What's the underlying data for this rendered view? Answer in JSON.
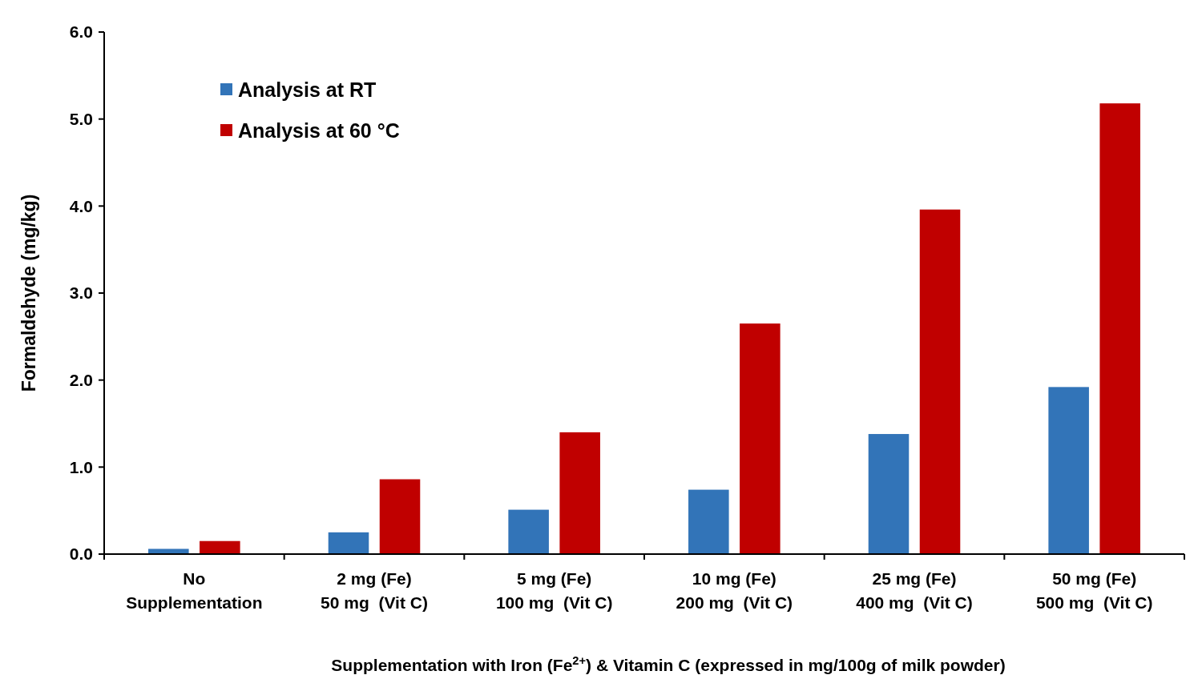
{
  "chart_data": {
    "type": "bar",
    "xlabel": "Supplementation with Iron (Fe$^{2+}$) & Vitamin C (expressed in mg/100g of milk powder)",
    "ylabel": "Formaldehyde (mg/kg)",
    "categories": [
      "No\nSupplementation",
      "2 mg (Fe)\n50 mg  (Vit C)",
      "5 mg (Fe)\n100 mg  (Vit C)",
      "10 mg (Fe)\n200 mg  (Vit C)",
      "25 mg (Fe)\n400 mg  (Vit C)",
      "50 mg (Fe)\n500 mg  (Vit C)"
    ],
    "series": [
      {
        "name": "Analysis at RT",
        "color": "#3274b8",
        "values": [
          0.06,
          0.25,
          0.51,
          0.74,
          1.38,
          1.92
        ]
      },
      {
        "name": "Analysis at 60 °C",
        "color": "#c00000",
        "values": [
          0.15,
          0.86,
          1.4,
          2.65,
          3.96,
          5.18
        ]
      }
    ],
    "ylim": [
      0,
      6
    ],
    "yticks": [
      {
        "value": 0,
        "label": "0.0"
      },
      {
        "value": 1,
        "label": "1.0"
      },
      {
        "value": 2,
        "label": "2.0"
      },
      {
        "value": 3,
        "label": "3.0"
      },
      {
        "value": 4,
        "label": "4.0"
      },
      {
        "value": 5,
        "label": "5.0"
      },
      {
        "value": 6,
        "label": "6.0"
      }
    ],
    "grid": false,
    "legend": "top left"
  }
}
